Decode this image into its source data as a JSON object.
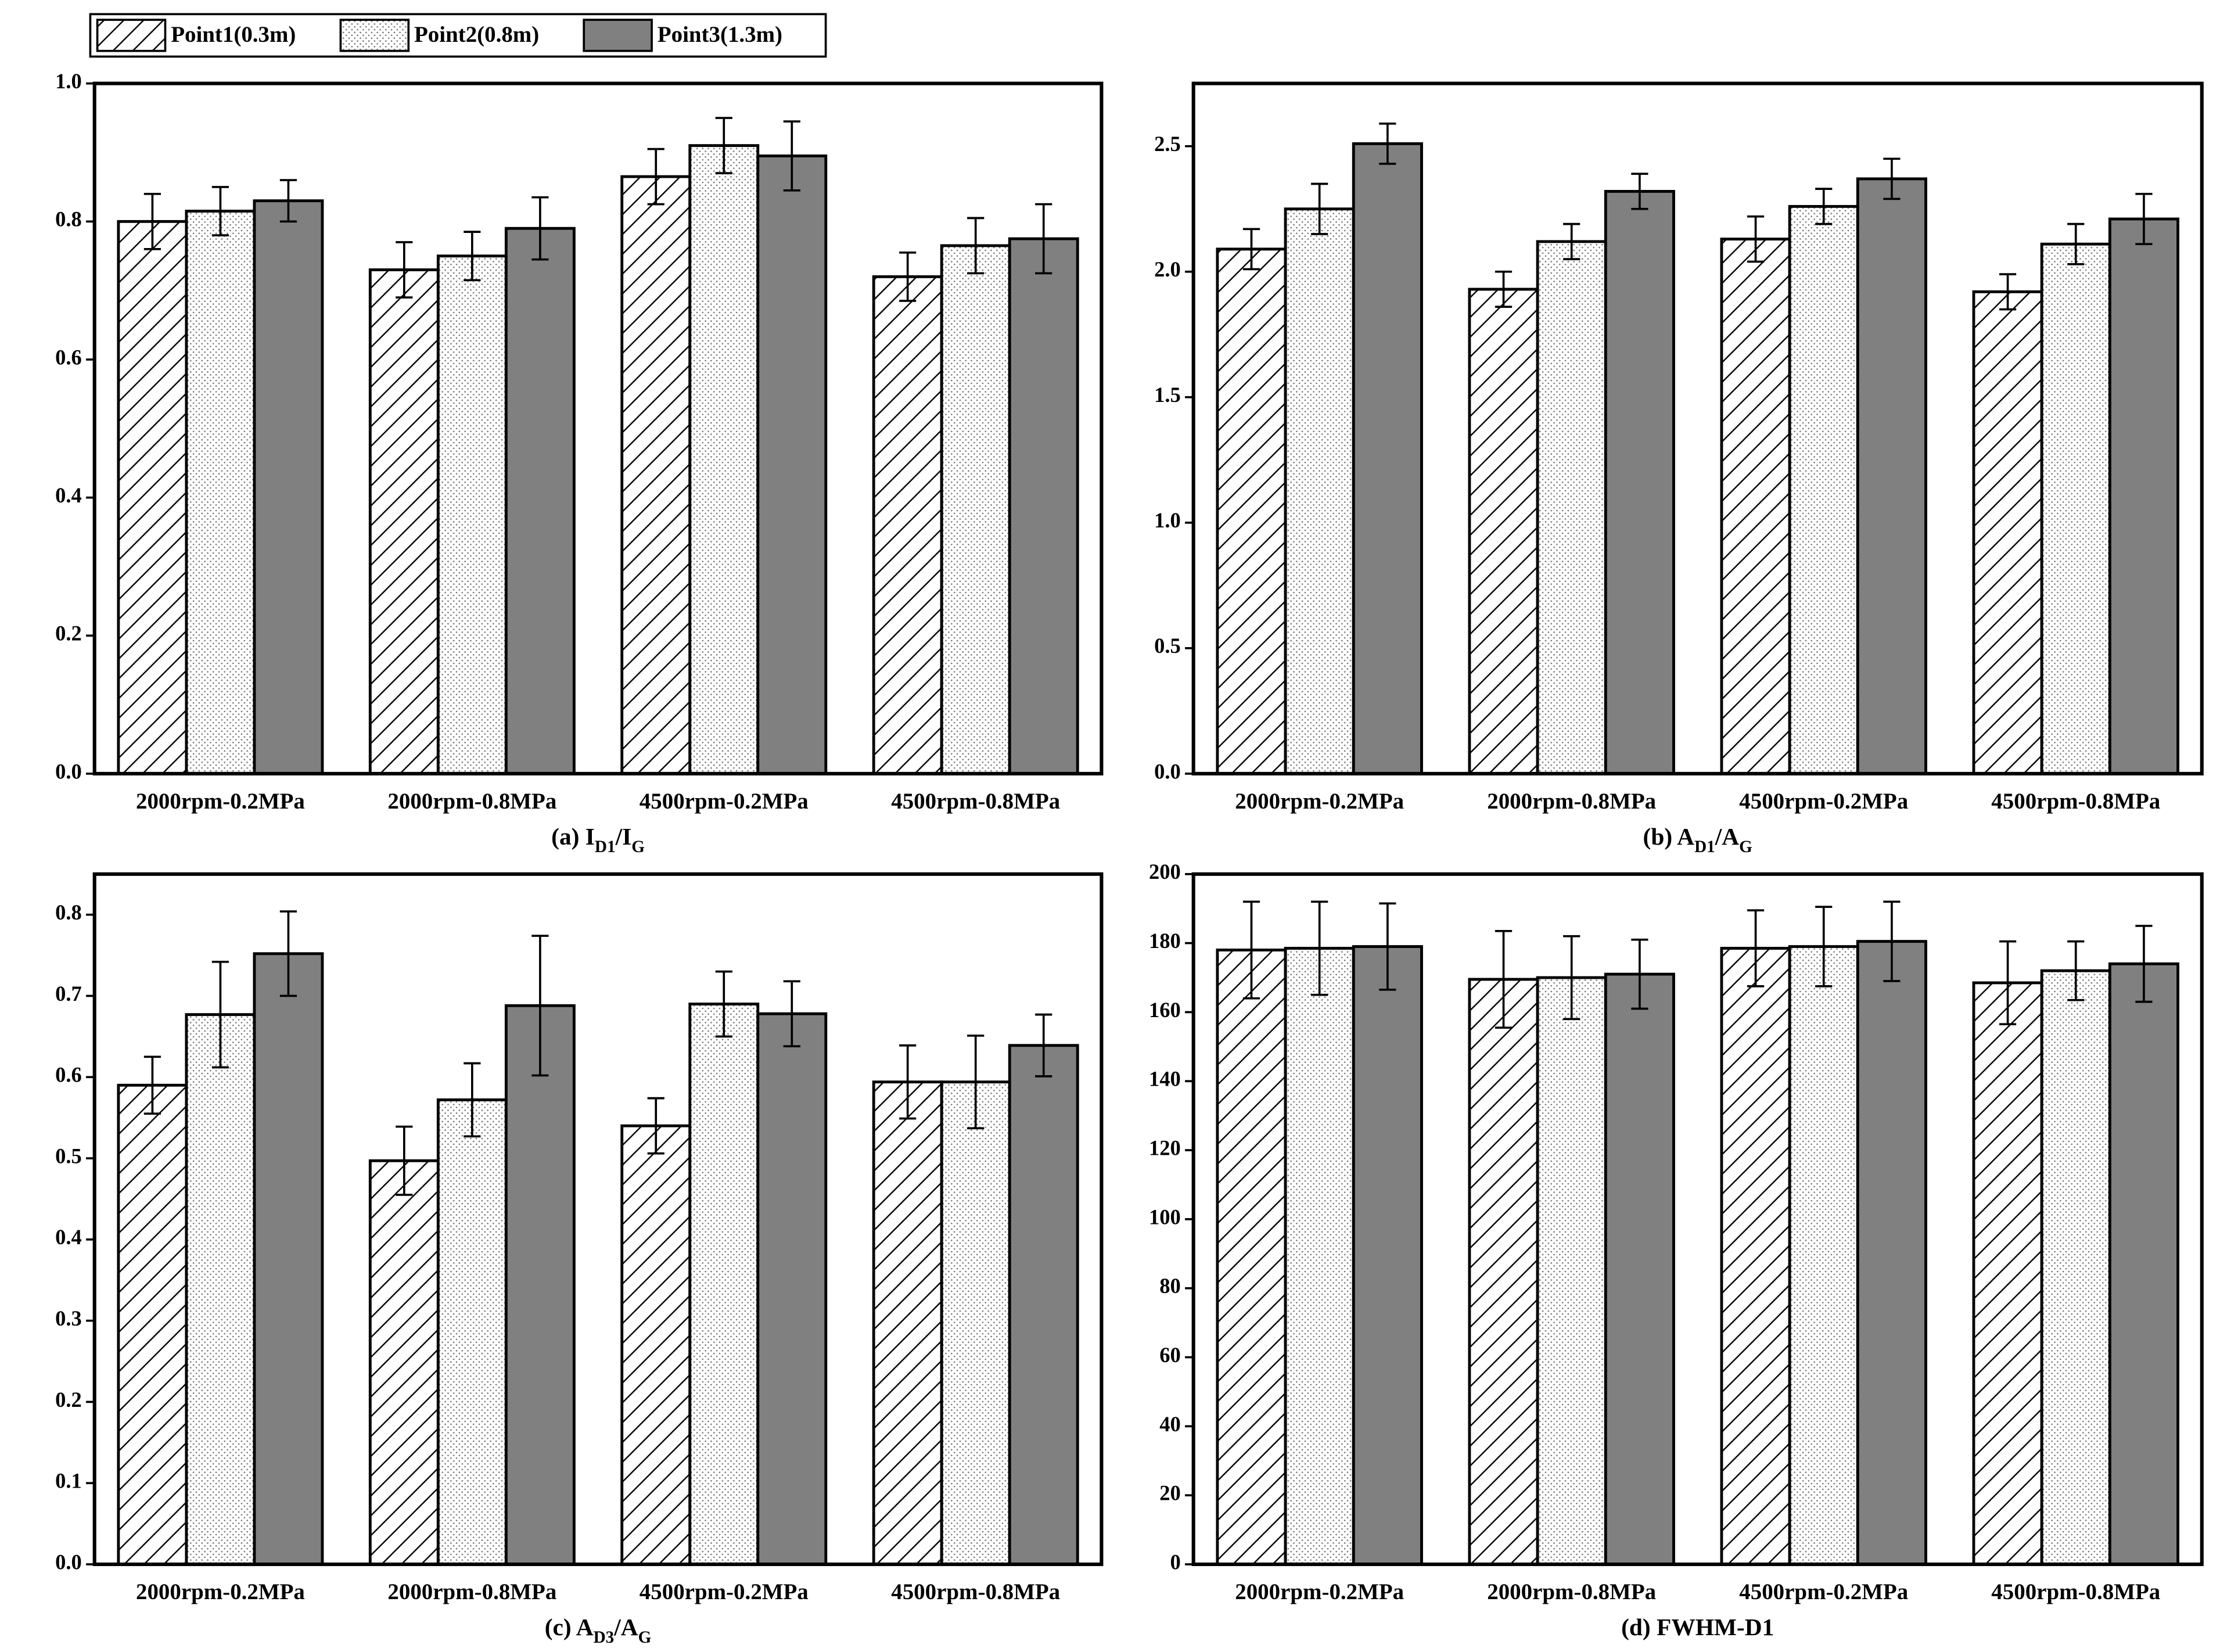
{
  "chart_data": [
    {
      "type": "bar",
      "title_parts": [
        {
          "text": "(a) I"
        },
        {
          "text": "D1",
          "sub": true
        },
        {
          "text": "/I"
        },
        {
          "text": "G",
          "sub": true
        }
      ],
      "categories": [
        "2000rpm-0.2MPa",
        "2000rpm-0.8MPa",
        "4500rpm-0.2MPa",
        "4500rpm-0.8MPa"
      ],
      "series": [
        {
          "name": "Point1(0.3m)",
          "pattern": "hatch",
          "color": "#ffffff",
          "values": [
            0.8,
            0.73,
            0.865,
            0.72
          ],
          "errors": [
            0.04,
            0.04,
            0.04,
            0.035
          ]
        },
        {
          "name": "Point2(0.8m)",
          "pattern": "dots",
          "color": "#ffffff",
          "values": [
            0.815,
            0.75,
            0.91,
            0.765
          ],
          "errors": [
            0.035,
            0.035,
            0.04,
            0.04
          ]
        },
        {
          "name": "Point3(1.3m)",
          "pattern": "solid",
          "color": "#808080",
          "values": [
            0.83,
            0.79,
            0.895,
            0.775
          ],
          "errors": [
            0.03,
            0.045,
            0.05,
            0.05
          ]
        }
      ],
      "ylim": [
        0,
        1
      ],
      "yticks": [
        {
          "value": 0,
          "label": "0.0"
        },
        0.2,
        0.4,
        0.6,
        0.8,
        {
          "value": 1,
          "label": "1.0"
        }
      ]
    },
    {
      "type": "bar",
      "title_parts": [
        {
          "text": "(b) A"
        },
        {
          "text": "D1",
          "sub": true
        },
        {
          "text": "/A"
        },
        {
          "text": "G",
          "sub": true
        }
      ],
      "categories": [
        "2000rpm-0.2MPa",
        "2000rpm-0.8MPa",
        "4500rpm-0.2MPa",
        "4500rpm-0.8MPa"
      ],
      "series": [
        {
          "values": [
            2.09,
            1.93,
            2.13,
            1.92
          ],
          "errors": [
            0.08,
            0.07,
            0.09,
            0.07
          ]
        },
        {
          "values": [
            2.25,
            2.12,
            2.26,
            2.11
          ],
          "errors": [
            0.1,
            0.07,
            0.07,
            0.08
          ]
        },
        {
          "values": [
            2.51,
            2.32,
            2.37,
            2.21
          ],
          "errors": [
            0.08,
            0.07,
            0.08,
            0.1
          ]
        }
      ],
      "ylim": [
        0,
        2.75
      ],
      "yticks": [
        {
          "value": 0,
          "label": "0.0"
        },
        0.5,
        {
          "value": 1,
          "label": "1.0"
        },
        1.5,
        {
          "value": 2,
          "label": "2.0"
        },
        2.5
      ]
    },
    {
      "type": "bar",
      "title_parts": [
        {
          "text": "(c) A"
        },
        {
          "text": "D3",
          "sub": true
        },
        {
          "text": "/A"
        },
        {
          "text": "G",
          "sub": true
        }
      ],
      "categories": [
        "2000rpm-0.2MPa",
        "2000rpm-0.8MPa",
        "4500rpm-0.2MPa",
        "4500rpm-0.8MPa"
      ],
      "series": [
        {
          "values": [
            0.59,
            0.497,
            0.54,
            0.594
          ],
          "errors": [
            0.035,
            0.042,
            0.034,
            0.045
          ]
        },
        {
          "values": [
            0.677,
            0.572,
            0.69,
            0.594
          ],
          "errors": [
            0.065,
            0.045,
            0.04,
            0.057
          ]
        },
        {
          "values": [
            0.752,
            0.688,
            0.678,
            0.639
          ],
          "errors": [
            0.052,
            0.086,
            0.04,
            0.038
          ]
        }
      ],
      "ylim": [
        0,
        0.85
      ],
      "yticks": [
        {
          "value": 0,
          "label": "0.0"
        },
        0.1,
        0.2,
        0.3,
        0.4,
        0.5,
        0.6,
        0.7,
        0.8
      ]
    },
    {
      "type": "bar",
      "title_parts": [
        {
          "text": "(d) FWHM-D1"
        }
      ],
      "categories": [
        "2000rpm-0.2MPa",
        "2000rpm-0.8MPa",
        "4500rpm-0.2MPa",
        "4500rpm-0.8MPa"
      ],
      "series": [
        {
          "values": [
            178,
            169.5,
            178.5,
            168.5
          ],
          "errors": [
            14,
            14,
            11,
            12
          ]
        },
        {
          "values": [
            178.5,
            170,
            179,
            172
          ],
          "errors": [
            13.5,
            12,
            11.5,
            8.5
          ]
        },
        {
          "values": [
            179,
            171,
            180.5,
            174
          ],
          "errors": [
            12.5,
            10,
            11.5,
            11
          ]
        }
      ],
      "ylim": [
        0,
        200
      ],
      "yticks": [
        0,
        20,
        40,
        60,
        80,
        100,
        120,
        140,
        160,
        180,
        200
      ]
    }
  ]
}
